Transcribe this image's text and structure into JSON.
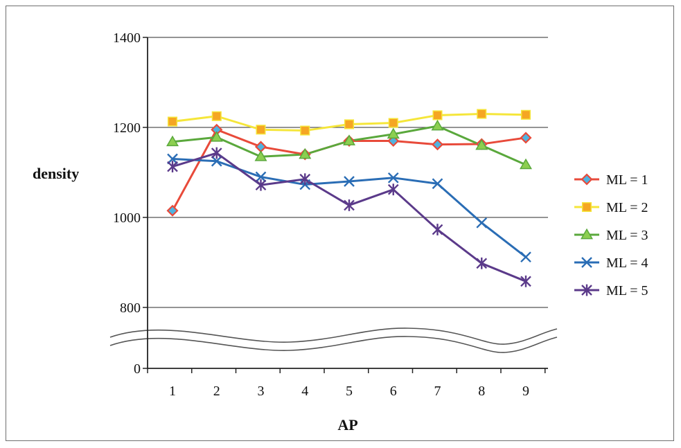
{
  "chart_data": {
    "type": "line",
    "xlabel": "AP",
    "ylabel": "density",
    "x": [
      1,
      2,
      3,
      4,
      5,
      6,
      7,
      8,
      9
    ],
    "x_tick_labels": [
      "1",
      "2",
      "3",
      "4",
      "5",
      "6",
      "7",
      "8",
      "9"
    ],
    "y_tick_labels": [
      "0",
      "800",
      "1000",
      "1200",
      "1400"
    ],
    "y_ticks": [
      0,
      800,
      1000,
      1200,
      1400
    ],
    "ylim": [
      800,
      1400
    ],
    "axis_break": "between 0 and 800",
    "grid": "horizontal",
    "legend_position": "right",
    "series": [
      {
        "name": "ML = 1",
        "color": "#e84a3a",
        "marker": "diamond",
        "marker_fill": "#4fb3e0",
        "values": [
          1015,
          1195,
          1157,
          1140,
          1170,
          1170,
          1162,
          1163,
          1177
        ]
      },
      {
        "name": "ML = 2",
        "color": "#f5e63a",
        "marker": "square",
        "marker_fill": "#f5a623",
        "values": [
          1213,
          1225,
          1195,
          1193,
          1207,
          1210,
          1227,
          1230,
          1228
        ]
      },
      {
        "name": "ML = 3",
        "color": "#5aa83c",
        "marker": "triangle",
        "marker_fill": "#8ccf50",
        "values": [
          1168,
          1178,
          1135,
          1140,
          1170,
          1185,
          1203,
          1160,
          1117
        ]
      },
      {
        "name": "ML = 4",
        "color": "#2a6db5",
        "marker": "x",
        "marker_fill": "#2a6db5",
        "values": [
          1130,
          1125,
          1090,
          1073,
          1080,
          1088,
          1075,
          988,
          912
        ]
      },
      {
        "name": "ML = 5",
        "color": "#5b3a8a",
        "marker": "star",
        "marker_fill": "#5b3a8a",
        "values": [
          1113,
          1143,
          1072,
          1085,
          1027,
          1062,
          973,
          898,
          858
        ]
      }
    ]
  }
}
